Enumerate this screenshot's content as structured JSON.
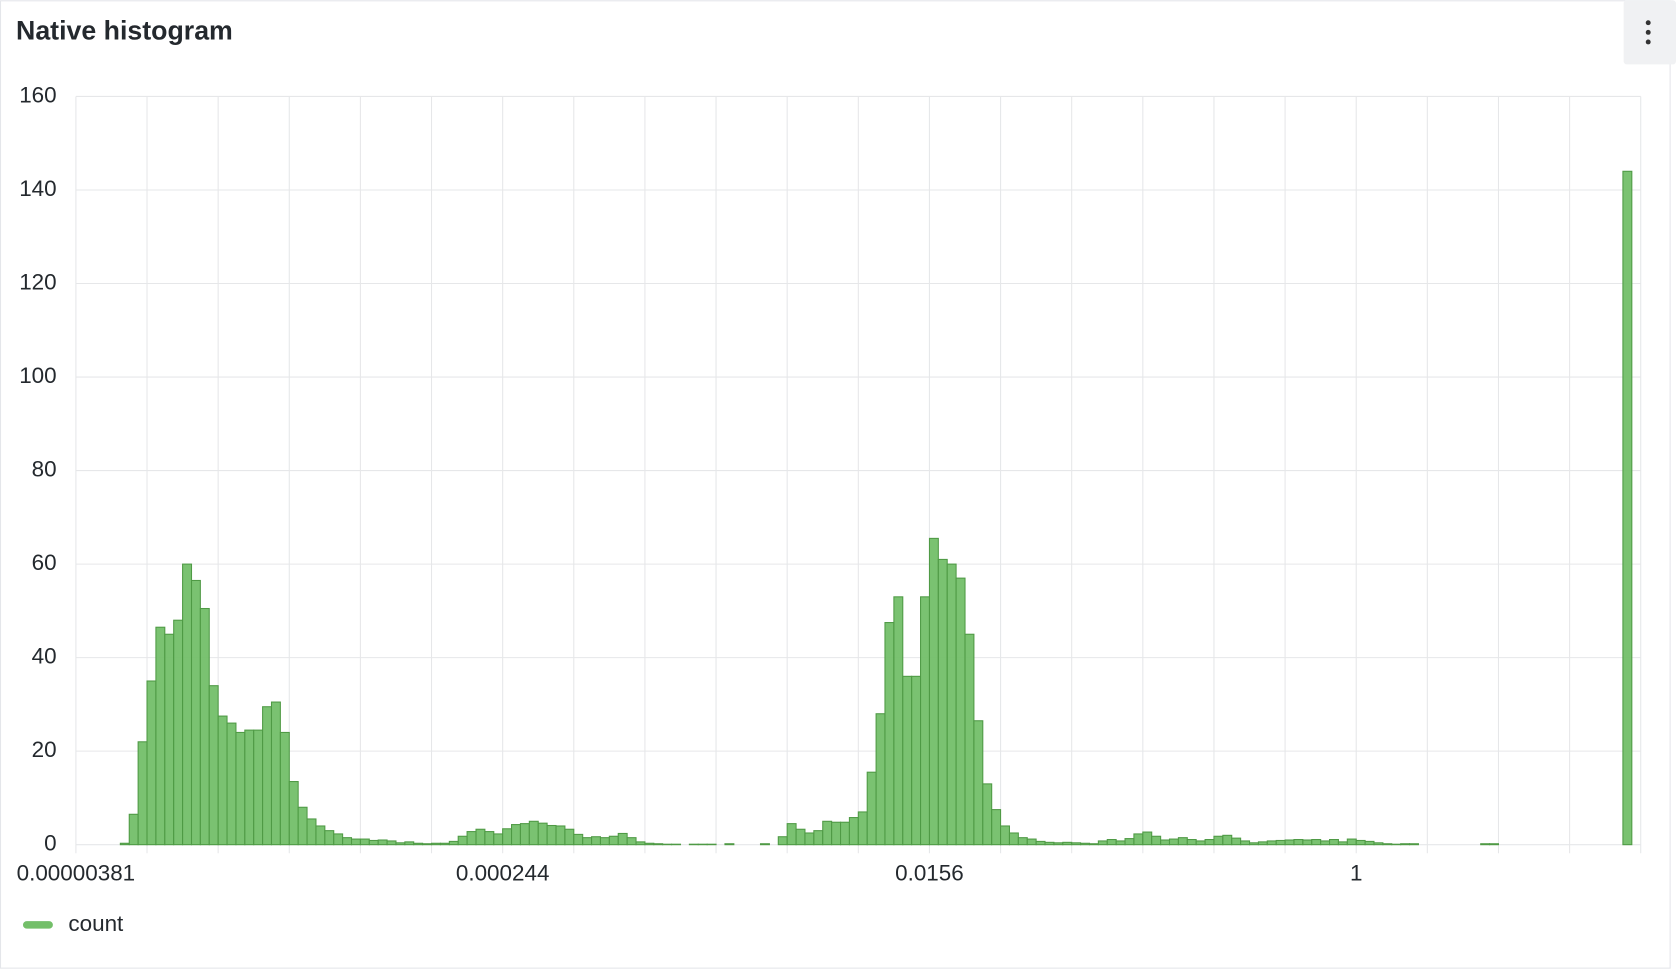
{
  "chart_data": {
    "type": "histogram",
    "title": "Native histogram",
    "xscale": "log",
    "xlim": [
      3.814697265625e-06,
      16
    ],
    "xticks": [
      {
        "value": 3.814697265625e-06,
        "label": "0.00000381"
      },
      {
        "value": 7.62939453125e-06,
        "label": null
      },
      {
        "value": 1.52587890625e-05,
        "label": null
      },
      {
        "value": 3.0517578125e-05,
        "label": null
      },
      {
        "value": 6.103515625e-05,
        "label": null
      },
      {
        "value": 0.0001220703125,
        "label": null
      },
      {
        "value": 0.000244140625,
        "label": "0.000244"
      },
      {
        "value": 0.00048828125,
        "label": null
      },
      {
        "value": 0.0009765625,
        "label": null
      },
      {
        "value": 0.001953125,
        "label": null
      },
      {
        "value": 0.00390625,
        "label": null
      },
      {
        "value": 0.0078125,
        "label": null
      },
      {
        "value": 0.015625,
        "label": "0.0156"
      },
      {
        "value": 0.03125,
        "label": null
      },
      {
        "value": 0.0625,
        "label": null
      },
      {
        "value": 0.125,
        "label": null
      },
      {
        "value": 0.25,
        "label": null
      },
      {
        "value": 0.5,
        "label": null
      },
      1,
      {
        "value": 2,
        "label": null
      },
      {
        "value": 4,
        "label": null
      },
      {
        "value": 8,
        "label": null
      },
      {
        "value": 16,
        "label": null
      }
    ],
    "ylim": [
      0,
      160
    ],
    "yticks": [
      0,
      20,
      40,
      60,
      80,
      100,
      120,
      140,
      160
    ],
    "grid": true,
    "legend": "bottom-left",
    "bins": [
      5.883e-06,
      6.416e-06,
      6.996e-06,
      7.629e-06,
      8.32e-06,
      9.073e-06,
      9.894e-06,
      1.079e-05,
      1.177e-05,
      1.283e-05,
      1.399e-05,
      1.526e-05,
      1.664e-05,
      1.815e-05,
      1.979e-05,
      2.158e-05,
      2.353e-05,
      2.566e-05,
      2.798e-05,
      3.052e-05,
      3.328e-05,
      3.629e-05,
      3.958e-05,
      4.316e-05,
      4.707e-05,
      5.132e-05,
      5.597e-05,
      6.104e-05,
      6.656e-05,
      7.258e-05,
      7.915e-05,
      8.632e-05,
      9.413e-05,
      0.0001026,
      0.0001119,
      0.0001221,
      0.0001331,
      0.0001452,
      0.0001583,
      0.0001726,
      0.0001883,
      0.0002053,
      0.0002239,
      0.0002441,
      0.0002662,
      0.0002903,
      0.0003166,
      0.0003453,
      0.0003765,
      0.0004106,
      0.0004478,
      0.0004883,
      0.0005325,
      0.0005807,
      0.0006332,
      0.0006905,
      0.000753,
      0.0008212,
      0.0008955,
      0.0009766,
      0.001065,
      0.001161,
      0.001266,
      0.001381,
      0.001506,
      0.001642,
      0.001791,
      0.001953,
      0.00213,
      0.002323,
      0.002533,
      0.002762,
      0.003012,
      0.003285,
      0.003582,
      0.003906,
      0.00426,
      0.004645,
      0.005066,
      0.005524,
      0.006024,
      0.00657,
      0.007164,
      0.007813,
      0.00852,
      0.009291,
      0.01013,
      0.01105,
      0.01205,
      0.01314,
      0.01433,
      0.01563,
      0.01704,
      0.01858,
      0.02026,
      0.0221,
      0.0241,
      0.02628,
      0.02866,
      0.03125,
      0.03408,
      0.03716,
      0.04053,
      0.04419,
      0.04819,
      0.05256,
      0.05731,
      0.0625,
      0.06816,
      0.07433,
      0.08105,
      0.08839,
      0.09639,
      0.1051,
      0.1146,
      0.125,
      0.1363,
      0.1487,
      0.1621,
      0.1768,
      0.1928,
      0.2102,
      0.2293,
      0.25,
      0.2726,
      0.2973,
      0.3242,
      0.3536,
      0.3856,
      0.4204,
      0.4585,
      0.5,
      0.5453,
      0.5946,
      0.6484,
      0.7071,
      0.7711,
      0.8409,
      0.917,
      1,
      1.0905,
      1.189,
      1.297,
      1.414,
      1.542,
      1.682,
      1.834,
      2,
      2.181,
      2.378,
      2.594,
      2.828,
      3.084,
      3.364,
      3.668,
      4,
      4.362,
      4.757,
      5.187,
      5.657,
      6.169,
      6.727,
      7.336,
      8,
      8.724,
      9.514,
      10.37,
      11.31,
      12.34,
      13.45,
      14.67
    ],
    "series": [
      {
        "name": "count",
        "color": "#73bf69",
        "values": [
          0.3,
          6.5,
          22,
          35,
          46.5,
          45,
          48,
          60,
          56.5,
          50.5,
          34,
          27.5,
          26,
          24,
          24.5,
          24.5,
          29.5,
          30.5,
          24,
          13.5,
          8,
          5.5,
          4,
          3,
          2.3,
          1.5,
          1.2,
          1.2,
          0.9,
          1,
          0.8,
          0.4,
          0.6,
          0.3,
          0.2,
          0.3,
          0.3,
          0.7,
          1.8,
          2.8,
          3.3,
          2.8,
          2.3,
          3.4,
          4.3,
          4.5,
          5,
          4.6,
          4.1,
          4,
          3.3,
          2.2,
          1.5,
          1.7,
          1.5,
          1.8,
          2.4,
          1.5,
          0.6,
          0.3,
          0.2,
          0.1,
          0.1,
          0,
          0.1,
          0.1,
          0.1,
          0,
          0.2,
          0,
          0,
          0,
          0.2,
          0,
          1.7,
          4.5,
          3.3,
          2.5,
          3,
          5,
          4.8,
          4.8,
          5.8,
          7,
          15.5,
          28,
          47.5,
          53,
          36,
          36,
          53,
          65.5,
          61,
          60,
          57,
          45,
          26.5,
          13,
          7.5,
          4,
          2.5,
          1.5,
          1.2,
          0.7,
          0.5,
          0.4,
          0.5,
          0.4,
          0.3,
          0.2,
          0.8,
          1.1,
          0.8,
          1.3,
          2.3,
          2.7,
          1.8,
          1,
          1.2,
          1.5,
          1.1,
          0.8,
          1.1,
          1.8,
          2,
          1.4,
          0.8,
          0.4,
          0.6,
          0.8,
          0.9,
          1,
          1.1,
          1,
          1.1,
          0.8,
          1.1,
          0.6,
          1.2,
          0.9,
          0.7,
          0.4,
          0.2,
          0.1,
          0.2,
          0.2,
          0,
          0,
          0,
          0,
          0,
          0,
          0,
          0.2,
          0.2,
          0,
          0,
          0,
          0,
          0,
          0,
          0,
          0,
          0,
          0,
          0,
          0,
          0,
          0,
          144
        ]
      }
    ]
  }
}
